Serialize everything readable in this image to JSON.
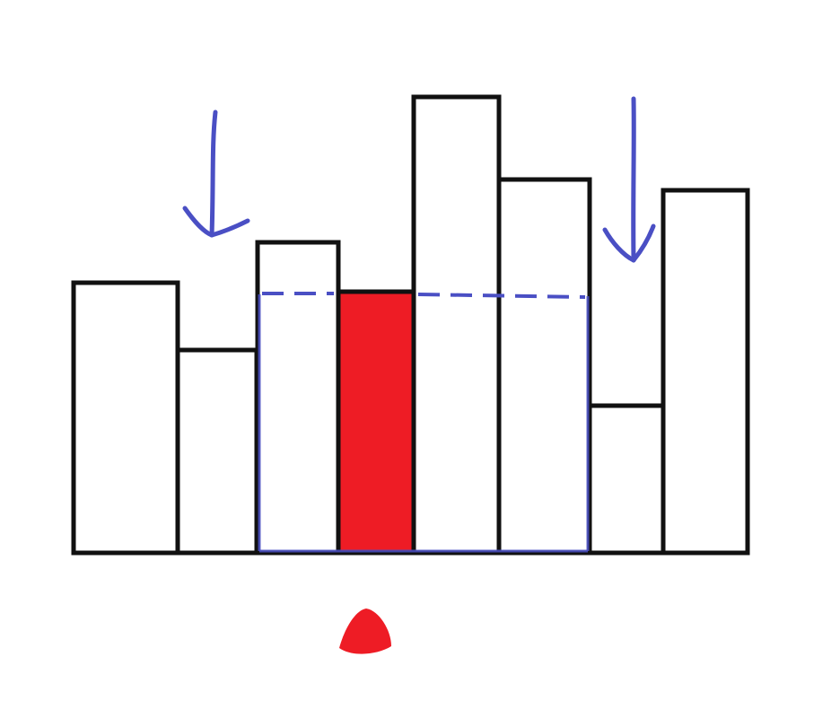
{
  "diagram": {
    "bars": [
      {
        "id": "bar-1",
        "height": 4.0,
        "highlighted": false
      },
      {
        "id": "bar-2",
        "height": 3.0,
        "highlighted": false
      },
      {
        "id": "bar-3",
        "height": 4.5,
        "highlighted": false
      },
      {
        "id": "bar-4",
        "height": 3.8,
        "highlighted": true
      },
      {
        "id": "bar-5",
        "height": 6.7,
        "highlighted": false
      },
      {
        "id": "bar-6",
        "height": 5.5,
        "highlighted": false
      },
      {
        "id": "bar-7",
        "height": 2.2,
        "highlighted": false
      },
      {
        "id": "bar-8",
        "height": 5.3,
        "highlighted": false
      }
    ],
    "highlighted_bar": "bar-4",
    "range_bounds": {
      "left_arrow_before": "bar-3",
      "right_arrow_before": "bar-7"
    },
    "dashed_level": 3.8,
    "colors": {
      "bar_stroke": "#111111",
      "bar_fill": "#ffffff",
      "highlight_fill": "#ee1c25",
      "annotation_blue": "#4a4fc4",
      "marker_red": "#ee1c25"
    }
  }
}
